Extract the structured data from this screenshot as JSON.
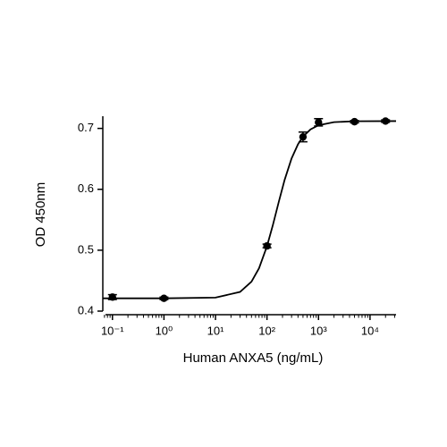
{
  "chart_data": {
    "type": "scatter",
    "x_label": "Human ANXA5 (ng/mL)",
    "y_label": "OD 450nm",
    "x_log": true,
    "xlim": [
      0.065,
      32000
    ],
    "ylim": [
      0.4,
      0.72
    ],
    "xticks": [
      {
        "value": 0.1,
        "label": "10⁻¹"
      },
      {
        "value": 1,
        "label": "10⁰"
      },
      {
        "value": 10,
        "label": "10¹"
      },
      {
        "value": 100,
        "label": "10²"
      },
      {
        "value": 1000,
        "label": "10³"
      },
      {
        "value": 10000,
        "label": "10⁴"
      }
    ],
    "yticks": [
      0.4,
      0.5,
      0.6,
      0.7
    ],
    "series": [
      {
        "color": "#000000",
        "x": [
          0.1,
          1,
          100,
          500,
          1000,
          5000,
          20000
        ],
        "values": [
          0.423,
          0.421,
          0.507,
          0.686,
          0.71,
          0.711,
          0.712
        ],
        "errors": [
          0.004,
          0.002,
          0.003,
          0.008,
          0.006,
          0.002,
          0.002
        ]
      }
    ],
    "curve": {
      "color": "#000000",
      "x": [
        0.065,
        0.1,
        1,
        10,
        30,
        50,
        70,
        100,
        130,
        170,
        220,
        300,
        400,
        500,
        700,
        1000,
        2000,
        5000,
        32000
      ],
      "values": [
        0.421,
        0.421,
        0.421,
        0.4222,
        0.4315,
        0.4484,
        0.4703,
        0.5066,
        0.5412,
        0.5799,
        0.6155,
        0.6507,
        0.674,
        0.6865,
        0.6984,
        0.7052,
        0.7103,
        0.7117,
        0.712
      ]
    }
  }
}
